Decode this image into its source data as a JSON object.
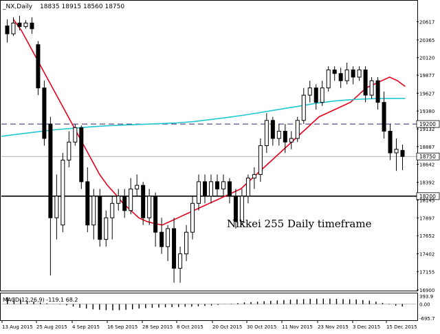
{
  "header": {
    "symbol": "_NX,Daily",
    "ohlc": "18835 18915 18560 18750"
  },
  "annotation": "Nikkei 255 Daily timeframe",
  "colors": {
    "frame": "#000000",
    "candle_up": "#ffffff",
    "candle_down": "#000000",
    "ma_fast": "#e8001c",
    "ma_slow": "#20c8d0",
    "level_dash": "#3a1f6e",
    "level_solid": "#000000",
    "current_line": "#b0b0b0"
  },
  "chart_data": [
    {
      "type": "candlestick",
      "title": "_NX,Daily",
      "ylim": [
        16900,
        20900
      ],
      "yticks": [
        "20617",
        "20365",
        "20120",
        "19877",
        "19627",
        "19380",
        "19132",
        "18887",
        "18642",
        "18392",
        "18145",
        "17897",
        "17652",
        "17402",
        "17155",
        "16900"
      ],
      "xticks": [
        "13 Aug 2015",
        "25 Aug 2015",
        "4 Sep 2015",
        "16 Sep 2015",
        "28 Sep 2015",
        "8 Oct 2015",
        "20 Oct 2015",
        "30 Oct 2015",
        "11 Nov 2015",
        "23 Nov 2015",
        "3 Dec 2015",
        "15 Dec 2015"
      ],
      "levels": [
        {
          "value": 19200,
          "label": "19200",
          "style": "dashed"
        },
        {
          "value": 18200,
          "label": "18200",
          "style": "solid"
        }
      ],
      "current_price": {
        "value": 18750,
        "label": "18750"
      },
      "candles": [
        [
          20560,
          20650,
          20330,
          20450
        ],
        [
          20450,
          20680,
          20420,
          20600
        ],
        [
          20600,
          20700,
          20500,
          20550
        ],
        [
          20550,
          20640,
          20520,
          20600
        ],
        [
          20600,
          20680,
          20450,
          20520
        ],
        [
          20300,
          20350,
          19600,
          19700
        ],
        [
          19700,
          19800,
          18900,
          19000
        ],
        [
          19200,
          19300,
          17100,
          17900
        ],
        [
          17900,
          18500,
          17600,
          18200
        ],
        [
          17800,
          18800,
          17700,
          18700
        ],
        [
          18700,
          19100,
          18600,
          18950
        ],
        [
          18950,
          19200,
          18900,
          19150
        ],
        [
          19150,
          19180,
          18300,
          18400
        ],
        [
          18400,
          18600,
          17700,
          17800
        ],
        [
          17800,
          18300,
          17600,
          18200
        ],
        [
          18200,
          18300,
          17500,
          17600
        ],
        [
          17600,
          18000,
          17500,
          17900
        ],
        [
          17900,
          18200,
          17600,
          18100
        ],
        [
          18100,
          18300,
          18000,
          18200
        ],
        [
          18200,
          18300,
          17900,
          18000
        ],
        [
          18000,
          18450,
          17950,
          18300
        ],
        [
          18300,
          18500,
          18200,
          18350
        ],
        [
          18350,
          18400,
          17800,
          17900
        ],
        [
          17900,
          18300,
          17800,
          18200
        ],
        [
          18200,
          18250,
          17500,
          17700
        ],
        [
          17700,
          17900,
          17400,
          17500
        ],
        [
          17500,
          17800,
          17300,
          17750
        ],
        [
          17750,
          17900,
          17000,
          17200
        ],
        [
          17200,
          17500,
          17000,
          17400
        ],
        [
          17400,
          17800,
          17300,
          17700
        ],
        [
          17700,
          18200,
          17600,
          18100
        ],
        [
          18100,
          18500,
          18000,
          18400
        ],
        [
          18400,
          18500,
          18100,
          18200
        ],
        [
          18200,
          18500,
          18100,
          18400
        ],
        [
          18400,
          18500,
          18200,
          18300
        ],
        [
          18300,
          18500,
          18200,
          18400
        ],
        [
          18400,
          18450,
          18100,
          18200
        ],
        [
          18200,
          18300,
          17750,
          17850
        ],
        [
          17850,
          18300,
          17800,
          18200
        ],
        [
          18200,
          18500,
          18100,
          18450
        ],
        [
          18450,
          18600,
          18300,
          18500
        ],
        [
          18500,
          19000,
          18400,
          18900
        ],
        [
          18900,
          19350,
          18800,
          19250
        ],
        [
          19250,
          19300,
          18900,
          19000
        ],
        [
          19000,
          19200,
          18900,
          19100
        ],
        [
          19100,
          19200,
          18800,
          18950
        ],
        [
          18950,
          19100,
          18850,
          19000
        ],
        [
          19000,
          19300,
          18950,
          19250
        ],
        [
          19250,
          19700,
          19200,
          19600
        ],
        [
          19600,
          19800,
          19500,
          19700
        ],
        [
          19700,
          19750,
          19400,
          19500
        ],
        [
          19500,
          19800,
          19450,
          19700
        ],
        [
          19700,
          20000,
          19650,
          19950
        ],
        [
          19950,
          20000,
          19800,
          19900
        ],
        [
          19900,
          19980,
          19700,
          19800
        ],
        [
          19800,
          20050,
          19750,
          19950
        ],
        [
          19950,
          20000,
          19750,
          19850
        ],
        [
          19850,
          20000,
          19800,
          19950
        ],
        [
          19950,
          20000,
          19500,
          19600
        ],
        [
          19600,
          19850,
          19550,
          19800
        ],
        [
          19800,
          19850,
          19400,
          19500
        ],
        [
          19500,
          19650,
          19000,
          19100
        ],
        [
          19100,
          19200,
          18700,
          18800
        ],
        [
          18800,
          19000,
          18550,
          18850
        ],
        [
          18835,
          18915,
          18560,
          18750
        ]
      ],
      "ma_fast": [
        20650,
        20500,
        20300,
        20100,
        19900,
        19700,
        19500,
        19300,
        19100,
        18900,
        18700,
        18500,
        18350,
        18230,
        18100,
        18000,
        17900,
        17850,
        17820,
        17800,
        17850,
        17900,
        17950,
        18000,
        18050,
        18100,
        18150,
        18200,
        18250,
        18300,
        18400,
        18500,
        18600,
        18700,
        18800,
        18900,
        19000,
        19100,
        19200,
        19300,
        19350,
        19400,
        19450,
        19500,
        19600,
        19700,
        19750,
        19800,
        19850,
        19800,
        19720
      ],
      "ma_slow": [
        19030,
        19060,
        19090,
        19120,
        19140,
        19160,
        19175,
        19185,
        19195,
        19205,
        19215,
        19235,
        19265,
        19295,
        19330,
        19370,
        19410,
        19450,
        19490,
        19520,
        19540,
        19550,
        19555,
        19555
      ],
      "macd": {
        "label": "MACD(12,26,9) -119.1 68.2",
        "ylim": [
          -695.7,
          393.9
        ],
        "yticks": [
          "393.9",
          "0.00",
          "-695.7"
        ],
        "hist": [
          340,
          280,
          220,
          160,
          120,
          80,
          40,
          10,
          -20,
          -60,
          -120,
          -180,
          -220,
          -260,
          -280,
          -300,
          -310,
          -300,
          -280,
          -260,
          -220,
          -200,
          -180,
          -170,
          -160,
          -150,
          -140,
          -130,
          -120,
          -110,
          -90,
          -70,
          -40,
          -10,
          20,
          50,
          80,
          100,
          120,
          140,
          160,
          180,
          200,
          220,
          240,
          250,
          260,
          265,
          270,
          270,
          260,
          250,
          240,
          230,
          200,
          170,
          120,
          60,
          -20,
          -80,
          -119
        ]
      }
    }
  ]
}
